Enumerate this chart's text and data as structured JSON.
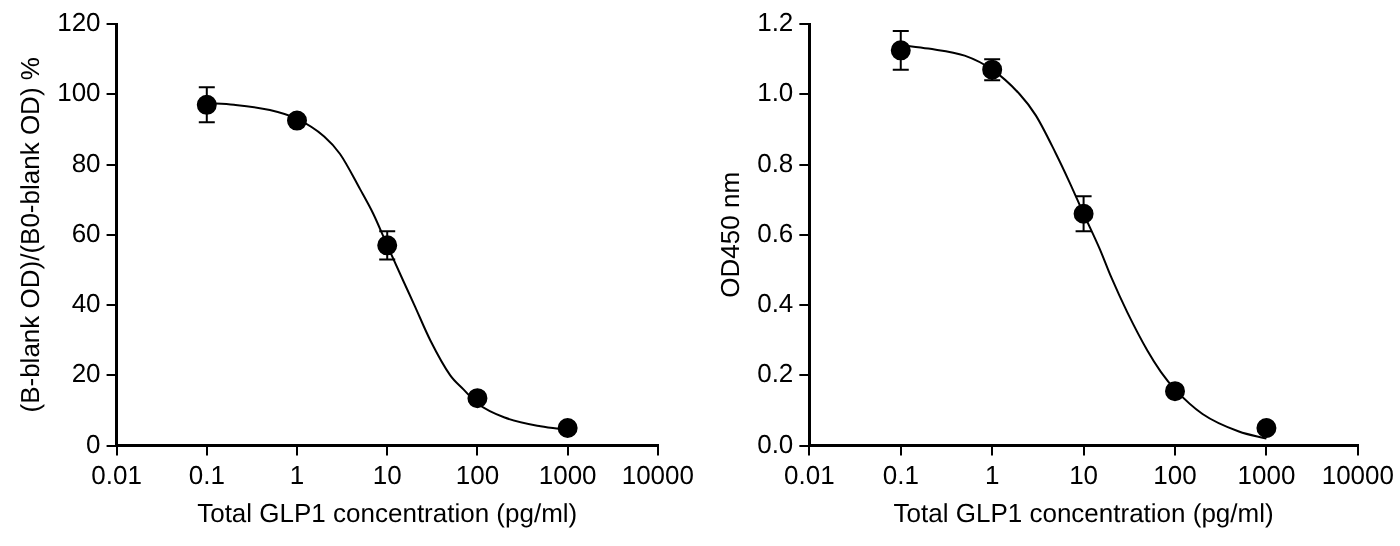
{
  "chart_data": [
    {
      "type": "scatter",
      "xlabel": "Total GLP1 concentration (pg/ml)",
      "ylabel": "(B-blank OD)/(B0-blank OD) %",
      "log": "x",
      "grid": false,
      "legend": false,
      "xlim": [
        0.01,
        10000
      ],
      "xticks": [
        0.01,
        0.1,
        1,
        10,
        100,
        1000,
        10000
      ],
      "ylim": [
        0,
        120
      ],
      "yticks": [
        0,
        20,
        40,
        60,
        80,
        100,
        120
      ],
      "series": [
        {
          "type": "scatter",
          "color": "#000000",
          "marker": "circle",
          "x": [
            0.1,
            1,
            10,
            100,
            1000
          ],
          "values": [
            97,
            92.5,
            57,
            13.5,
            5
          ],
          "errors": [
            5,
            1,
            4,
            1,
            1
          ]
        },
        {
          "type": "line",
          "color": "#000000",
          "line_style": "solid",
          "x": [
            0.1,
            0.2,
            0.5,
            1,
            2,
            3,
            5,
            7,
            10,
            15,
            20,
            30,
            50,
            70,
            100,
            200,
            500,
            1000
          ],
          "values": [
            97.5,
            97,
            95.5,
            93,
            88,
            83,
            73,
            66,
            57,
            47,
            40,
            30,
            20,
            16,
            12,
            8,
            5.5,
            4.5
          ]
        }
      ]
    },
    {
      "type": "scatter",
      "xlabel": "Total GLP1 concentration (pg/ml)",
      "ylabel": "OD450 nm",
      "log": "x",
      "grid": false,
      "legend": false,
      "xlim": [
        0.01,
        10000
      ],
      "xticks": [
        0.01,
        0.1,
        1,
        10,
        100,
        1000,
        10000
      ],
      "ylim": [
        0,
        1.2
      ],
      "yticks": [
        {
          "value": 0,
          "label": "0.0"
        },
        0.2,
        0.4,
        0.6,
        0.8,
        {
          "value": 1,
          "label": "1.0"
        },
        1.2
      ],
      "series": [
        {
          "type": "scatter",
          "color": "#000000",
          "marker": "circle",
          "x": [
            0.1,
            1,
            10,
            100,
            1000
          ],
          "values": [
            1.125,
            1.07,
            0.66,
            0.155,
            0.05
          ],
          "errors": [
            0.055,
            0.03,
            0.05,
            0.01,
            0.01
          ]
        },
        {
          "type": "line",
          "color": "#000000",
          "line_style": "solid",
          "x": [
            0.1,
            0.2,
            0.5,
            1,
            2,
            3,
            5,
            7,
            10,
            15,
            20,
            30,
            50,
            70,
            100,
            200,
            500,
            1000
          ],
          "values": [
            1.14,
            1.13,
            1.11,
            1.07,
            1.0,
            0.94,
            0.83,
            0.75,
            0.66,
            0.56,
            0.48,
            0.38,
            0.27,
            0.21,
            0.16,
            0.09,
            0.04,
            0.02
          ]
        }
      ]
    }
  ]
}
